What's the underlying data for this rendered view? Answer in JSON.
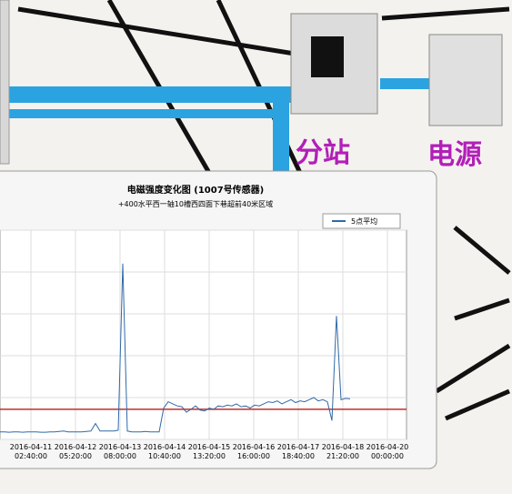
{
  "background": {
    "labels": [
      "分站",
      "电源"
    ]
  },
  "chart_data": {
    "type": "line",
    "title": "电磁强度变化图 (1007号传感器)",
    "subtitle": "+400水平西一轴10槽西四面下巷超前40米区域",
    "xticks": [
      [
        "2016-04-11",
        "02:40:00"
      ],
      [
        "2016-04-12",
        "05:20:00"
      ],
      [
        "2016-04-13",
        "08:00:00"
      ],
      [
        "2016-04-14",
        "10:40:00"
      ],
      [
        "2016-04-15",
        "13:20:00"
      ],
      [
        "2016-04-16",
        "16:00:00"
      ],
      [
        "2016-04-17",
        "18:40:00"
      ],
      [
        "2016-04-18",
        "21:20:00"
      ],
      [
        "2016-04-20",
        "00:00:00"
      ]
    ],
    "ylim": [
      0,
      5
    ],
    "yticks": [
      0,
      1,
      2,
      3,
      4,
      5
    ],
    "grid": true,
    "threshold": {
      "value": 0.72,
      "color": "#c0302a"
    },
    "series": [
      {
        "name": "5点平均",
        "color": "#2f6aa8",
        "values": [
          0.18,
          0.18,
          0.17,
          0.18,
          0.18,
          0.17,
          0.18,
          0.18,
          0.18,
          0.17,
          0.17,
          0.18,
          0.18,
          0.19,
          0.2,
          0.18,
          0.18,
          0.18,
          0.18,
          0.19,
          0.2,
          0.38,
          0.2,
          0.2,
          0.2,
          0.2,
          0.22,
          4.2,
          0.2,
          0.18,
          0.18,
          0.18,
          0.19,
          0.18,
          0.18,
          0.18,
          0.75,
          0.9,
          0.85,
          0.8,
          0.78,
          0.65,
          0.72,
          0.8,
          0.7,
          0.68,
          0.75,
          0.72,
          0.8,
          0.78,
          0.82,
          0.8,
          0.85,
          0.78,
          0.8,
          0.75,
          0.82,
          0.8,
          0.85,
          0.9,
          0.88,
          0.92,
          0.85,
          0.9,
          0.95,
          0.88,
          0.92,
          0.9,
          0.95,
          1.0,
          0.92,
          0.95,
          0.9,
          0.45,
          2.95,
          0.95,
          0.98,
          0.97
        ]
      }
    ],
    "legend": "top-right"
  }
}
